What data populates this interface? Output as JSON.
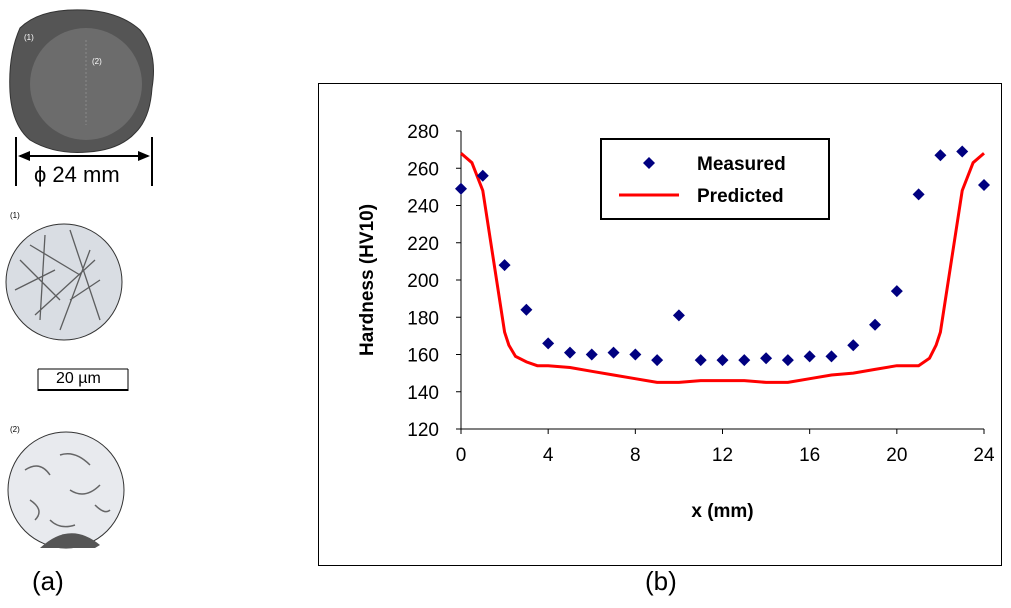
{
  "panel_a": {
    "caption": "(a)",
    "diameter_label": "ϕ 24 mm",
    "region_label_1": "(1)",
    "region_label_2": "(2)",
    "micro1_label": "(1)",
    "micro2_label": "(2)",
    "scale_bar_label": "20 µm"
  },
  "panel_b": {
    "caption": "(b)"
  },
  "chart_data": {
    "type": "scatter",
    "title": "",
    "xlabel": "x (mm)",
    "ylabel": "Hardness (HV10)",
    "xlim": [
      0,
      24
    ],
    "ylim": [
      120,
      280
    ],
    "xticks": [
      0,
      4,
      8,
      12,
      16,
      20,
      24
    ],
    "yticks": [
      120,
      140,
      160,
      180,
      200,
      220,
      240,
      260,
      280
    ],
    "legend_position": "top-center",
    "series": [
      {
        "name": "Measured",
        "kind": "markers",
        "color": "#000080",
        "x": [
          0,
          1,
          2,
          3,
          4,
          5,
          6,
          7,
          8,
          9,
          10,
          11,
          12,
          13,
          14,
          15,
          16,
          17,
          18,
          19,
          20,
          21,
          22,
          23,
          24
        ],
        "y": [
          249,
          256,
          208,
          184,
          166,
          161,
          160,
          161,
          160,
          157,
          181,
          157,
          157,
          157,
          158,
          157,
          159,
          159,
          165,
          176,
          194,
          246,
          267,
          269,
          251
        ]
      },
      {
        "name": "Predicted",
        "kind": "line",
        "color": "#ff0000",
        "x": [
          0,
          0.5,
          1,
          1.5,
          2,
          2.2,
          2.5,
          3,
          3.5,
          4,
          5,
          6,
          7,
          8,
          9,
          10,
          11,
          12,
          13,
          14,
          15,
          16,
          17,
          18,
          19,
          20,
          20.5,
          21,
          21.5,
          21.8,
          22,
          22.5,
          23,
          23.5,
          24
        ],
        "y": [
          268,
          263,
          248,
          210,
          172,
          165,
          159,
          156,
          154,
          154,
          153,
          151,
          149,
          147,
          145,
          145,
          146,
          146,
          146,
          145,
          145,
          147,
          149,
          150,
          152,
          154,
          154,
          154,
          158,
          165,
          172,
          210,
          248,
          263,
          268
        ]
      }
    ]
  }
}
